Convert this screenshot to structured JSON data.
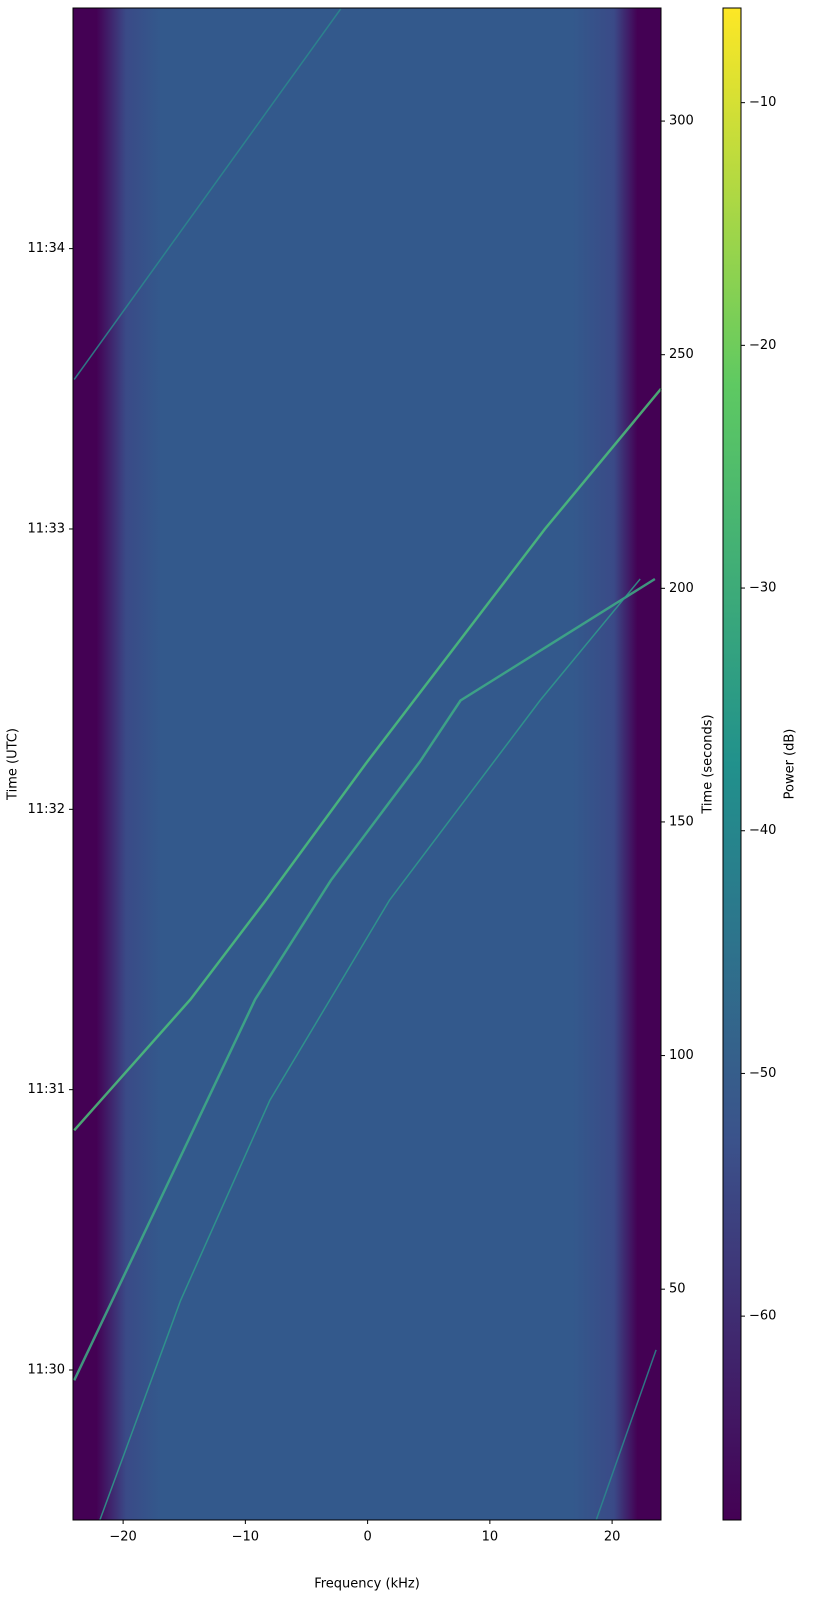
{
  "chart_data": {
    "type": "spectrogram",
    "xlabel": "Frequency (kHz)",
    "ylabel": "Time (UTC)",
    "y2label": "Time (seconds)",
    "colorbar_label": "Power (dB)",
    "xlim": [
      -24.1,
      24
    ],
    "xticks": [
      {
        "value": -20,
        "label": "−20"
      },
      {
        "value": -10,
        "label": "−10"
      },
      0,
      10,
      20
    ],
    "ylim": [
      0.6,
      324.2
    ],
    "yticks": [
      {
        "value": 32.7,
        "label": "11:30"
      },
      {
        "value": 92.7,
        "label": "11:31"
      },
      {
        "value": 152.7,
        "label": "11:32"
      },
      {
        "value": 212.7,
        "label": "11:33"
      },
      {
        "value": 272.7,
        "label": "11:34"
      }
    ],
    "y2lim": [
      0.6,
      324.2
    ],
    "y2ticks": [
      50,
      100,
      150,
      200,
      250,
      300
    ],
    "colormap": "viridis",
    "clim": [
      -68.4,
      -6.1
    ],
    "cticks": [
      {
        "value": -60,
        "label": "−60"
      },
      {
        "value": -50,
        "label": "−50"
      },
      {
        "value": -40,
        "label": "−40"
      },
      {
        "value": -30,
        "label": "−30"
      },
      {
        "value": -20,
        "label": "−20"
      },
      {
        "value": -10,
        "label": "−10"
      }
    ],
    "series": [
      {
        "color": "#4cc27a",
        "x": [
          -24,
          -14.5,
          -8.4,
          0,
          14.5,
          24
        ],
        "y": [
          84,
          112,
          133,
          163,
          212.7,
          242.7
        ]
      },
      {
        "color": "#3fae86",
        "x": [
          -24,
          -17,
          -9.2,
          -3,
          4.3,
          7.6,
          23.5
        ],
        "y": [
          30.5,
          69,
          112,
          137.5,
          163,
          176,
          202
        ]
      },
      {
        "color": "#2f9b8c",
        "x": [
          -21.9,
          -15.3,
          -8,
          1.8,
          14.1,
          22.3
        ],
        "y": [
          0.6,
          47.6,
          90.4,
          133.3,
          176,
          202
        ]
      },
      {
        "color": "#2c8a8d",
        "x": [
          -24,
          -2.2
        ],
        "y": [
          244.7,
          324
        ]
      },
      {
        "color": "#2c8a8d",
        "x": [
          18.7,
          23.6
        ],
        "y": [
          0.6,
          37
        ]
      }
    ]
  }
}
